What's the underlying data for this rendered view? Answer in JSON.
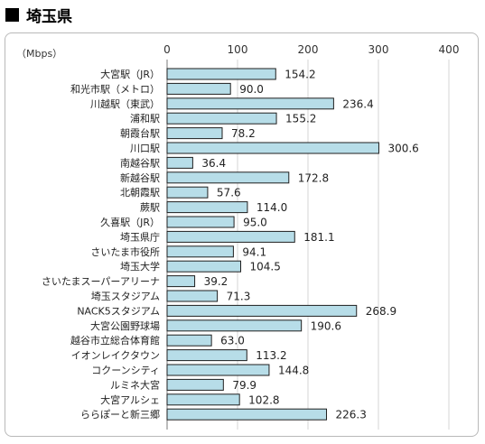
{
  "page": {
    "title": "埼玉県"
  },
  "chart_data": {
    "type": "bar",
    "orientation": "horizontal",
    "unit_label": "（Mbps）",
    "xlim": [
      0,
      400
    ],
    "ticks": [
      0,
      100,
      200,
      300,
      400
    ],
    "grid": true,
    "bar_color": "#b7dde8",
    "bar_stroke": "#1f1f1f",
    "categories": [
      "大宮駅（JR）",
      "和光市駅（メトロ）",
      "川越駅（東武）",
      "浦和駅",
      "朝霞台駅",
      "川口駅",
      "南越谷駅",
      "新越谷駅",
      "北朝霞駅",
      "蕨駅",
      "久喜駅（JR）",
      "埼玉県庁",
      "さいたま市役所",
      "埼玉大学",
      "さいたまスーパーアリーナ",
      "埼玉スタジアム",
      "NACK5スタジアム",
      "大宮公園野球場",
      "越谷市立総合体育館",
      "イオンレイクタウン",
      "コクーンシティ",
      "ルミネ大宮",
      "大宮アルシェ",
      "ららぽーと新三郷"
    ],
    "values": [
      154.2,
      90.0,
      236.4,
      155.2,
      78.2,
      300.6,
      36.4,
      172.8,
      57.6,
      114.0,
      95.0,
      181.1,
      94.1,
      104.5,
      39.2,
      71.3,
      268.9,
      190.6,
      63.0,
      113.2,
      144.8,
      79.9,
      102.8,
      226.3
    ],
    "value_labels": [
      "154.2",
      "90.0",
      "236.4",
      "155.2",
      "78.2",
      "300.6",
      "36.4",
      "172.8",
      "57.6",
      "114.0",
      "95.0",
      "181.1",
      "94.1",
      "104.5",
      "39.2",
      "71.3",
      "268.9",
      "190.6",
      "63.0",
      "113.2",
      "144.8",
      "79.9",
      "102.8",
      "226.3"
    ]
  }
}
